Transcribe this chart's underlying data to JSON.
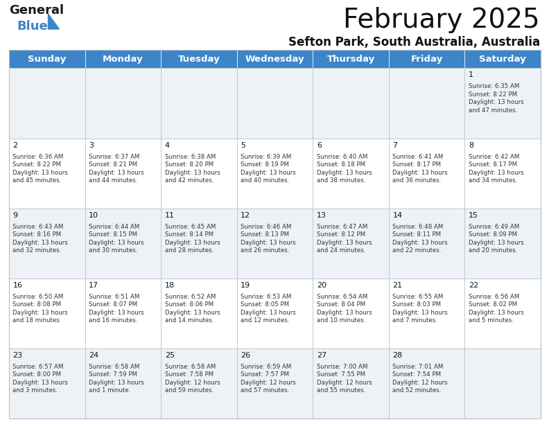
{
  "title": "February 2025",
  "subtitle": "Sefton Park, South Australia, Australia",
  "header_color": "#3d85c8",
  "header_text_color": "#ffffff",
  "cell_bg_odd": "#eef2f7",
  "cell_bg_even": "#ffffff",
  "grid_color": "#b0bec8",
  "days_of_week": [
    "Sunday",
    "Monday",
    "Tuesday",
    "Wednesday",
    "Thursday",
    "Friday",
    "Saturday"
  ],
  "calendar_data": [
    [
      null,
      null,
      null,
      null,
      null,
      null,
      {
        "day": "1",
        "sunrise": "6:35 AM",
        "sunset": "8:22 PM",
        "daylight_l1": "Daylight: 13 hours",
        "daylight_l2": "and 47 minutes."
      }
    ],
    [
      {
        "day": "2",
        "sunrise": "6:36 AM",
        "sunset": "8:22 PM",
        "daylight_l1": "Daylight: 13 hours",
        "daylight_l2": "and 45 minutes."
      },
      {
        "day": "3",
        "sunrise": "6:37 AM",
        "sunset": "8:21 PM",
        "daylight_l1": "Daylight: 13 hours",
        "daylight_l2": "and 44 minutes."
      },
      {
        "day": "4",
        "sunrise": "6:38 AM",
        "sunset": "8:20 PM",
        "daylight_l1": "Daylight: 13 hours",
        "daylight_l2": "and 42 minutes."
      },
      {
        "day": "5",
        "sunrise": "6:39 AM",
        "sunset": "8:19 PM",
        "daylight_l1": "Daylight: 13 hours",
        "daylight_l2": "and 40 minutes."
      },
      {
        "day": "6",
        "sunrise": "6:40 AM",
        "sunset": "8:18 PM",
        "daylight_l1": "Daylight: 13 hours",
        "daylight_l2": "and 38 minutes."
      },
      {
        "day": "7",
        "sunrise": "6:41 AM",
        "sunset": "8:17 PM",
        "daylight_l1": "Daylight: 13 hours",
        "daylight_l2": "and 36 minutes."
      },
      {
        "day": "8",
        "sunrise": "6:42 AM",
        "sunset": "8:17 PM",
        "daylight_l1": "Daylight: 13 hours",
        "daylight_l2": "and 34 minutes."
      }
    ],
    [
      {
        "day": "9",
        "sunrise": "6:43 AM",
        "sunset": "8:16 PM",
        "daylight_l1": "Daylight: 13 hours",
        "daylight_l2": "and 32 minutes."
      },
      {
        "day": "10",
        "sunrise": "6:44 AM",
        "sunset": "8:15 PM",
        "daylight_l1": "Daylight: 13 hours",
        "daylight_l2": "and 30 minutes."
      },
      {
        "day": "11",
        "sunrise": "6:45 AM",
        "sunset": "8:14 PM",
        "daylight_l1": "Daylight: 13 hours",
        "daylight_l2": "and 28 minutes."
      },
      {
        "day": "12",
        "sunrise": "6:46 AM",
        "sunset": "8:13 PM",
        "daylight_l1": "Daylight: 13 hours",
        "daylight_l2": "and 26 minutes."
      },
      {
        "day": "13",
        "sunrise": "6:47 AM",
        "sunset": "8:12 PM",
        "daylight_l1": "Daylight: 13 hours",
        "daylight_l2": "and 24 minutes."
      },
      {
        "day": "14",
        "sunrise": "6:48 AM",
        "sunset": "8:11 PM",
        "daylight_l1": "Daylight: 13 hours",
        "daylight_l2": "and 22 minutes."
      },
      {
        "day": "15",
        "sunrise": "6:49 AM",
        "sunset": "8:09 PM",
        "daylight_l1": "Daylight: 13 hours",
        "daylight_l2": "and 20 minutes."
      }
    ],
    [
      {
        "day": "16",
        "sunrise": "6:50 AM",
        "sunset": "8:08 PM",
        "daylight_l1": "Daylight: 13 hours",
        "daylight_l2": "and 18 minutes."
      },
      {
        "day": "17",
        "sunrise": "6:51 AM",
        "sunset": "8:07 PM",
        "daylight_l1": "Daylight: 13 hours",
        "daylight_l2": "and 16 minutes."
      },
      {
        "day": "18",
        "sunrise": "6:52 AM",
        "sunset": "8:06 PM",
        "daylight_l1": "Daylight: 13 hours",
        "daylight_l2": "and 14 minutes."
      },
      {
        "day": "19",
        "sunrise": "6:53 AM",
        "sunset": "8:05 PM",
        "daylight_l1": "Daylight: 13 hours",
        "daylight_l2": "and 12 minutes."
      },
      {
        "day": "20",
        "sunrise": "6:54 AM",
        "sunset": "8:04 PM",
        "daylight_l1": "Daylight: 13 hours",
        "daylight_l2": "and 10 minutes."
      },
      {
        "day": "21",
        "sunrise": "6:55 AM",
        "sunset": "8:03 PM",
        "daylight_l1": "Daylight: 13 hours",
        "daylight_l2": "and 7 minutes."
      },
      {
        "day": "22",
        "sunrise": "6:56 AM",
        "sunset": "8:02 PM",
        "daylight_l1": "Daylight: 13 hours",
        "daylight_l2": "and 5 minutes."
      }
    ],
    [
      {
        "day": "23",
        "sunrise": "6:57 AM",
        "sunset": "8:00 PM",
        "daylight_l1": "Daylight: 13 hours",
        "daylight_l2": "and 3 minutes."
      },
      {
        "day": "24",
        "sunrise": "6:58 AM",
        "sunset": "7:59 PM",
        "daylight_l1": "Daylight: 13 hours",
        "daylight_l2": "and 1 minute."
      },
      {
        "day": "25",
        "sunrise": "6:58 AM",
        "sunset": "7:58 PM",
        "daylight_l1": "Daylight: 12 hours",
        "daylight_l2": "and 59 minutes."
      },
      {
        "day": "26",
        "sunrise": "6:59 AM",
        "sunset": "7:57 PM",
        "daylight_l1": "Daylight: 12 hours",
        "daylight_l2": "and 57 minutes."
      },
      {
        "day": "27",
        "sunrise": "7:00 AM",
        "sunset": "7:55 PM",
        "daylight_l1": "Daylight: 12 hours",
        "daylight_l2": "and 55 minutes."
      },
      {
        "day": "28",
        "sunrise": "7:01 AM",
        "sunset": "7:54 PM",
        "daylight_l1": "Daylight: 12 hours",
        "daylight_l2": "and 52 minutes."
      },
      null
    ]
  ],
  "text_color": "#111111",
  "info_text_color": "#333333",
  "font_size_title": 28,
  "font_size_subtitle": 12,
  "font_size_dow": 9.5,
  "font_size_day": 8,
  "font_size_info": 6.2
}
